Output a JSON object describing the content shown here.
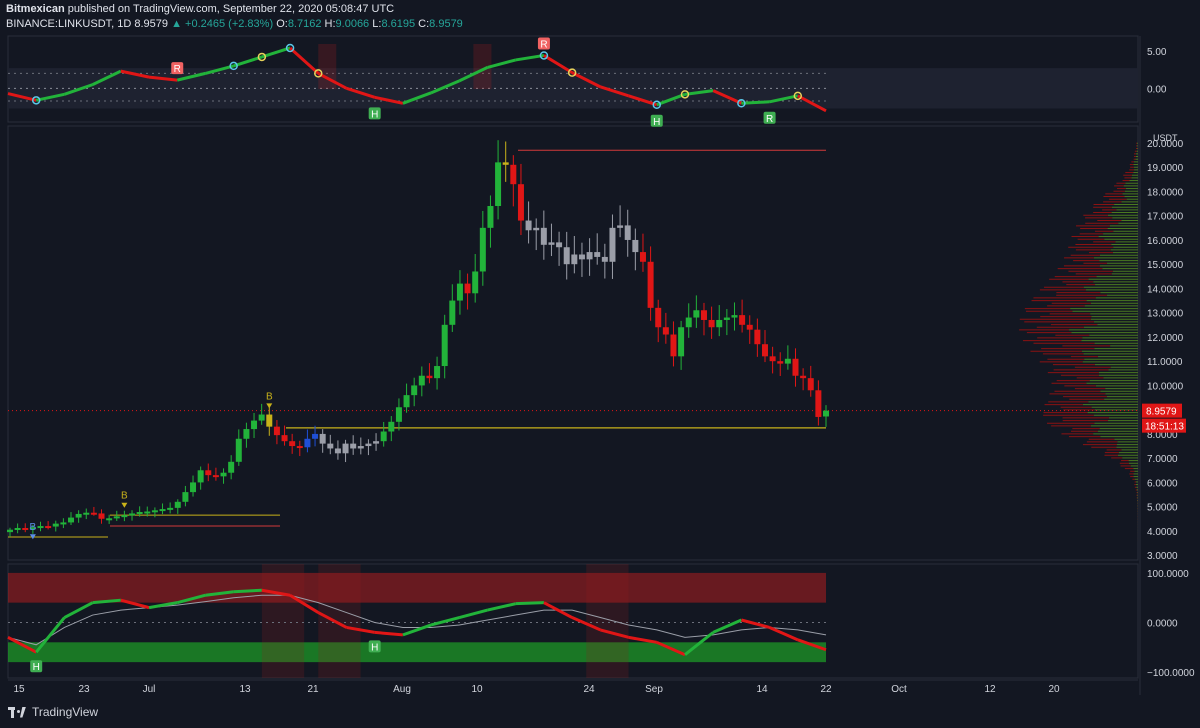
{
  "header": {
    "publisher": "Bitmexican",
    "published_text": "published on TradingView.com, September 22, 2020 05:08:47 UTC",
    "symbol": "BINANCE:LINKUSDT, 1D",
    "last": "8.9579",
    "change_arrow": "▲",
    "change": "+0.2465 (+2.83%)",
    "ohlc": {
      "O": "8.7162",
      "H": "9.0066",
      "L": "8.6195",
      "C": "8.9579"
    }
  },
  "footer": {
    "brand": "TradingView",
    "logo_icon": "tradingview-logo-icon"
  },
  "colors": {
    "background": "#131722",
    "up": "#22b33a",
    "down": "#e01616",
    "neutral": "#9b9ea8",
    "gold": "#c8b21a",
    "blue": "#1f4fd6",
    "badge_last": "#e01616"
  },
  "chart_data": [
    {
      "type": "line",
      "pane": "top-oscillator",
      "y_ticks": [
        "5.00",
        "0.00"
      ],
      "ylim": [
        -4.5,
        7
      ],
      "markers": [
        "R",
        "R",
        "H",
        "H",
        "R"
      ],
      "x": [
        0,
        4,
        8,
        12,
        16,
        20,
        24,
        28,
        32,
        36,
        40,
        44,
        48,
        52,
        56,
        60,
        64,
        68,
        72,
        76,
        80,
        84,
        88,
        92,
        96,
        100,
        104,
        108,
        112,
        116
      ],
      "values": [
        -0.7,
        -1.6,
        -0.8,
        0.5,
        2.3,
        1.5,
        1.1,
        2.0,
        3.0,
        4.2,
        5.4,
        2.0,
        0.0,
        -1.2,
        -2.0,
        -0.6,
        1.0,
        2.8,
        3.8,
        4.4,
        2.1,
        0.2,
        -1.0,
        -2.2,
        -0.8,
        -0.3,
        -2.0,
        -1.8,
        -1.0,
        -3.0
      ]
    },
    {
      "type": "candlestick",
      "pane": "price",
      "currency": "USDT",
      "y_ticks": [
        "20.0000",
        "19.0000",
        "18.0000",
        "17.0000",
        "16.0000",
        "15.0000",
        "14.0000",
        "13.0000",
        "12.0000",
        "11.0000",
        "10.0000",
        "9.0000",
        "8.0000",
        "7.0000",
        "6.0000",
        "5.0000",
        "4.0000",
        "3.0000"
      ],
      "ylim": [
        2.8,
        20.7
      ],
      "last_price": "8.9579",
      "countdown": "18:51:13",
      "signals": [
        "B",
        "B",
        "B"
      ],
      "close": [
        4.05,
        4.12,
        4.08,
        4.15,
        4.2,
        4.18,
        4.3,
        4.35,
        4.55,
        4.7,
        4.75,
        4.72,
        4.5,
        4.52,
        4.6,
        4.65,
        4.72,
        4.78,
        4.8,
        4.85,
        4.9,
        4.95,
        5.2,
        5.6,
        6.0,
        6.5,
        6.3,
        6.25,
        6.4,
        6.85,
        7.8,
        8.2,
        8.55,
        8.8,
        8.3,
        7.95,
        7.7,
        7.5,
        7.45,
        7.8,
        8.0,
        7.6,
        7.4,
        7.2,
        7.6,
        7.4,
        7.5,
        7.6,
        7.7,
        8.1,
        8.5,
        9.1,
        9.6,
        10.0,
        10.4,
        10.3,
        10.8,
        12.5,
        13.5,
        14.2,
        13.8,
        14.7,
        16.5,
        17.4,
        19.2,
        19.1,
        18.3,
        16.8,
        16.4,
        16.5,
        15.8,
        15.9,
        15.7,
        15.0,
        15.4,
        15.2,
        15.5,
        15.3,
        15.1,
        16.5,
        16.6,
        16.0,
        15.5,
        15.1,
        13.2,
        12.4,
        12.1,
        11.2,
        12.4,
        12.8,
        13.1,
        12.7,
        12.4,
        12.7,
        12.8,
        12.9,
        12.5,
        12.3,
        11.7,
        11.2,
        11.0,
        10.9,
        11.1,
        10.4,
        10.3,
        9.8,
        8.7,
        8.96
      ],
      "open": [
        3.95,
        4.05,
        4.12,
        4.08,
        4.15,
        4.2,
        4.18,
        4.3,
        4.35,
        4.55,
        4.7,
        4.75,
        4.72,
        4.5,
        4.52,
        4.6,
        4.65,
        4.72,
        4.78,
        4.8,
        4.85,
        4.9,
        4.95,
        5.2,
        5.6,
        6.0,
        6.5,
        6.3,
        6.25,
        6.4,
        6.85,
        7.8,
        8.2,
        8.55,
        8.8,
        8.3,
        7.95,
        7.7,
        7.5,
        7.45,
        7.8,
        8.0,
        7.6,
        7.4,
        7.2,
        7.6,
        7.4,
        7.5,
        7.6,
        7.7,
        8.1,
        8.5,
        9.1,
        9.6,
        10.0,
        10.4,
        10.3,
        10.8,
        12.5,
        13.5,
        14.2,
        13.8,
        14.7,
        16.5,
        17.4,
        19.2,
        19.1,
        18.3,
        16.8,
        16.4,
        16.5,
        15.8,
        15.9,
        15.7,
        15.0,
        15.4,
        15.2,
        15.5,
        15.3,
        15.1,
        16.5,
        16.6,
        16.0,
        15.5,
        15.1,
        13.2,
        12.4,
        12.1,
        11.2,
        12.4,
        12.8,
        13.1,
        12.7,
        12.4,
        12.7,
        12.8,
        12.9,
        12.5,
        12.3,
        11.7,
        11.2,
        11.0,
        10.9,
        11.1,
        10.4,
        10.3,
        9.8,
        8.72
      ]
    },
    {
      "type": "line",
      "pane": "bottom-oscillator",
      "y_ticks": [
        "100.0000",
        "0.0000",
        "−100.0000"
      ],
      "ylim": [
        -112,
        118
      ],
      "markers": [
        "H",
        "H"
      ],
      "x": [
        0,
        4,
        8,
        12,
        16,
        20,
        24,
        28,
        32,
        36,
        40,
        44,
        48,
        52,
        56,
        60,
        64,
        68,
        72,
        76,
        80,
        84,
        88,
        92,
        96,
        100,
        104,
        108,
        112,
        116
      ],
      "values": [
        -30,
        -60,
        10,
        40,
        45,
        30,
        40,
        55,
        62,
        65,
        55,
        20,
        -10,
        -20,
        -25,
        -5,
        10,
        25,
        38,
        40,
        10,
        -15,
        -30,
        -40,
        -65,
        -20,
        5,
        -10,
        -35,
        -55
      ],
      "signal": [
        -30,
        -45,
        -10,
        15,
        25,
        30,
        35,
        42,
        50,
        55,
        55,
        40,
        20,
        0,
        -10,
        -10,
        -5,
        5,
        15,
        25,
        25,
        10,
        -5,
        -15,
        -30,
        -25,
        -15,
        -10,
        -15,
        -25
      ]
    }
  ],
  "x_ticks": [
    "15",
    "23",
    "Jul",
    "13",
    "21",
    "Aug",
    "10",
    "24",
    "Sep",
    "14",
    "22",
    "Oct",
    "12",
    "20"
  ]
}
